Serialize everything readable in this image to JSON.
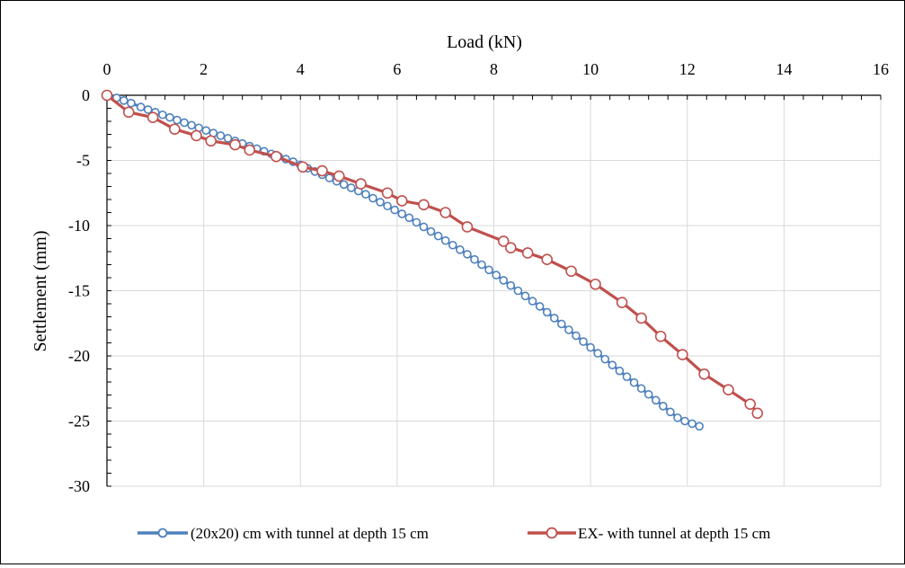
{
  "chart_data": {
    "type": "scatter",
    "xlabel": "Load (kN)",
    "ylabel": "Settlement (mm)",
    "xlim": [
      0,
      16
    ],
    "ylim": [
      -30,
      0
    ],
    "x_ticks": [
      "0",
      "2",
      "4",
      "6",
      "8",
      "10",
      "12",
      "14",
      "16"
    ],
    "y_ticks": [
      "0",
      "-5",
      "-10",
      "-15",
      "-20",
      "-25",
      "-30"
    ],
    "x_axis_position": "top",
    "grid": true,
    "legend_position": "bottom",
    "series": [
      {
        "name": "(20x20) cm with tunnel at depth 15 cm",
        "color": "#4F81BD",
        "marker": "open-circle",
        "x": [
          0,
          0.2,
          0.35,
          0.5,
          0.7,
          0.85,
          1.0,
          1.15,
          1.3,
          1.45,
          1.6,
          1.75,
          1.9,
          2.05,
          2.2,
          2.35,
          2.5,
          2.65,
          2.8,
          2.95,
          3.1,
          3.25,
          3.4,
          3.55,
          3.7,
          3.85,
          4.0,
          4.15,
          4.3,
          4.45,
          4.6,
          4.75,
          4.9,
          5.05,
          5.2,
          5.35,
          5.5,
          5.65,
          5.8,
          5.95,
          6.1,
          6.25,
          6.4,
          6.55,
          6.7,
          6.85,
          7.0,
          7.15,
          7.3,
          7.45,
          7.6,
          7.75,
          7.9,
          8.05,
          8.2,
          8.35,
          8.5,
          8.65,
          8.8,
          8.95,
          9.1,
          9.25,
          9.4,
          9.55,
          9.7,
          9.85,
          10.0,
          10.15,
          10.3,
          10.45,
          10.6,
          10.75,
          10.9,
          11.05,
          11.2,
          11.35,
          11.5,
          11.65,
          11.8,
          11.95,
          12.1,
          12.25
        ],
        "y": [
          0,
          -0.2,
          -0.4,
          -0.6,
          -0.9,
          -1.1,
          -1.3,
          -1.5,
          -1.7,
          -1.9,
          -2.1,
          -2.3,
          -2.5,
          -2.7,
          -2.9,
          -3.1,
          -3.3,
          -3.5,
          -3.7,
          -3.9,
          -4.1,
          -4.3,
          -4.5,
          -4.7,
          -4.9,
          -5.1,
          -5.35,
          -5.6,
          -5.85,
          -6.1,
          -6.35,
          -6.6,
          -6.85,
          -7.1,
          -7.35,
          -7.6,
          -7.9,
          -8.2,
          -8.5,
          -8.8,
          -9.1,
          -9.4,
          -9.75,
          -10.1,
          -10.45,
          -10.8,
          -11.15,
          -11.5,
          -11.85,
          -12.2,
          -12.6,
          -13.0,
          -13.4,
          -13.8,
          -14.2,
          -14.6,
          -15.0,
          -15.4,
          -15.8,
          -16.2,
          -16.65,
          -17.1,
          -17.55,
          -18.0,
          -18.45,
          -18.9,
          -19.35,
          -19.8,
          -20.25,
          -20.7,
          -21.15,
          -21.6,
          -22.05,
          -22.5,
          -22.95,
          -23.4,
          -23.85,
          -24.3,
          -24.75,
          -25.0,
          -25.2,
          -25.4
        ]
      },
      {
        "name": "EX- with tunnel at depth 15 cm",
        "color": "#C0504D",
        "marker": "open-circle",
        "x": [
          0,
          0.45,
          0.95,
          1.4,
          1.85,
          2.15,
          2.65,
          2.95,
          3.5,
          4.05,
          4.45,
          4.8,
          5.25,
          5.8,
          6.1,
          6.55,
          7.0,
          7.45,
          8.2,
          8.35,
          8.7,
          9.1,
          9.6,
          10.1,
          10.65,
          11.05,
          11.45,
          11.9,
          12.35,
          12.85,
          13.3,
          13.45
        ],
        "y": [
          0,
          -1.3,
          -1.7,
          -2.6,
          -3.1,
          -3.5,
          -3.8,
          -4.2,
          -4.7,
          -5.5,
          -5.8,
          -6.2,
          -6.8,
          -7.5,
          -8.1,
          -8.4,
          -9.0,
          -10.1,
          -11.2,
          -11.7,
          -12.1,
          -12.6,
          -13.5,
          -14.5,
          -15.9,
          -17.1,
          -18.5,
          -19.9,
          -21.4,
          -22.6,
          -23.7,
          -24.4
        ]
      }
    ]
  }
}
